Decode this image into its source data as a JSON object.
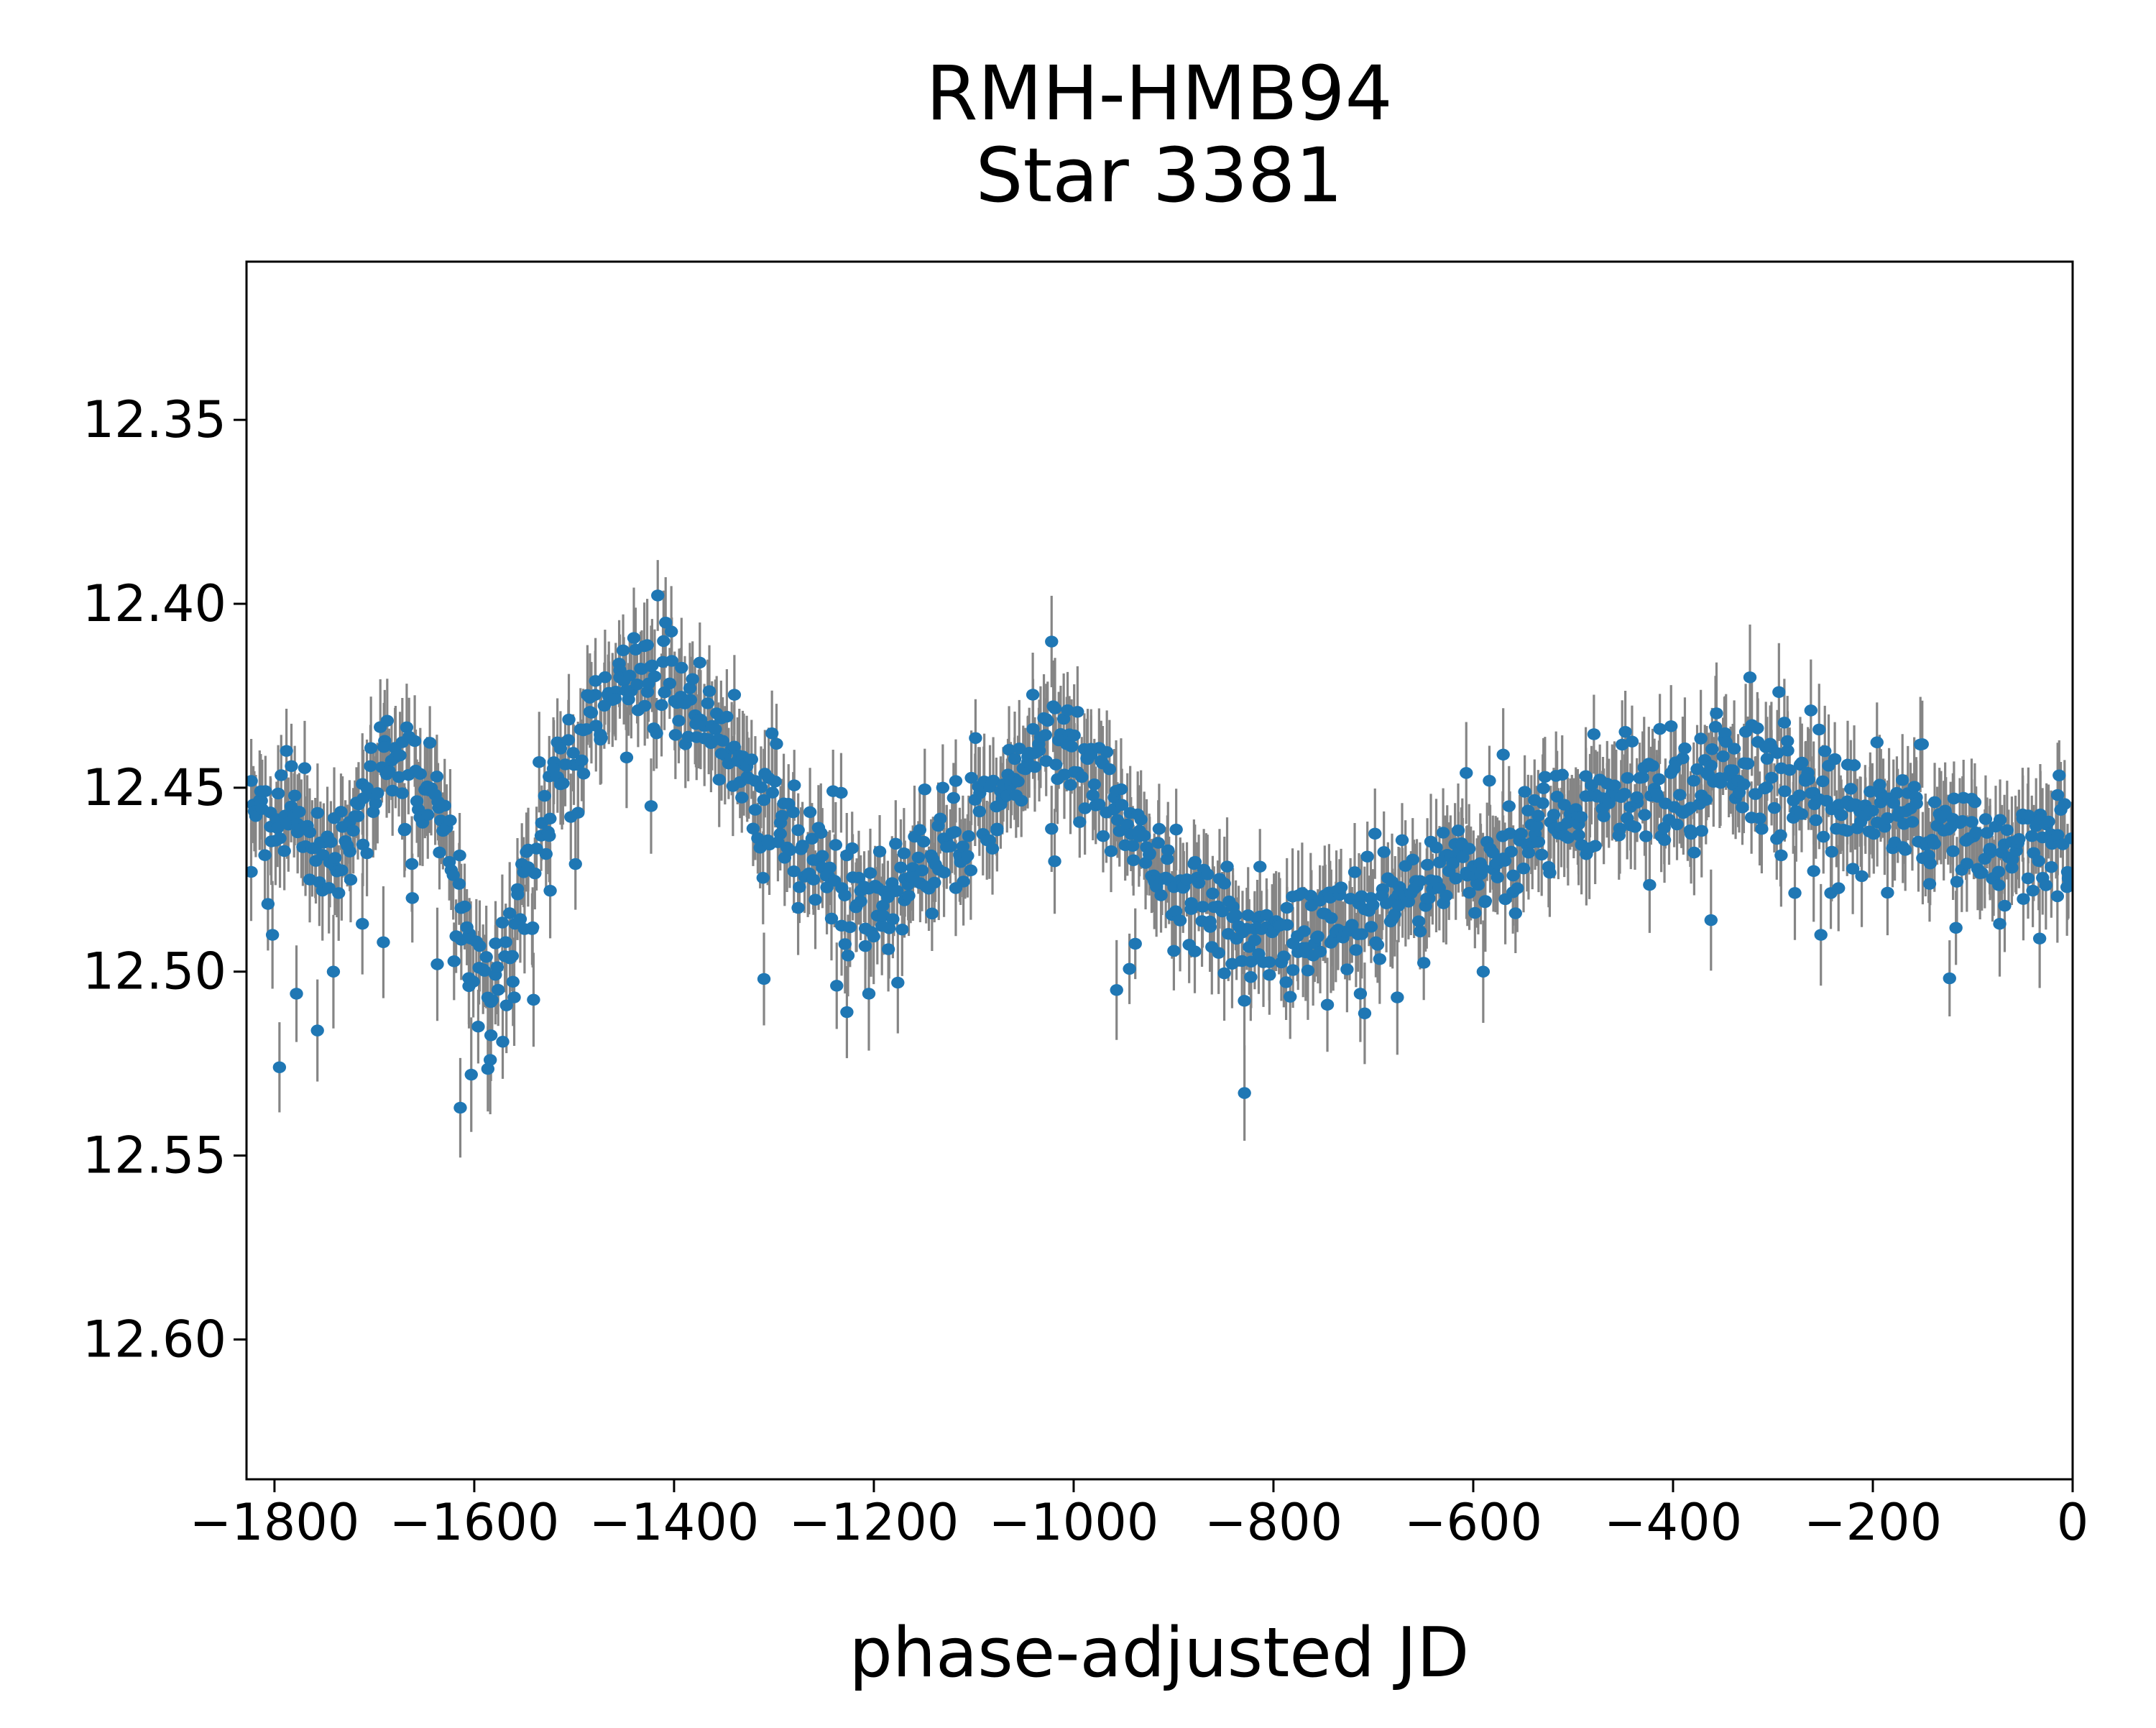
{
  "title": {
    "line1": "RMH-HMB94",
    "line2": "Star 3381"
  },
  "axes": {
    "xlabel": "phase-adjusted JD",
    "x_ticks": [
      {
        "value": -1800,
        "label": "−1800"
      },
      {
        "value": -1600,
        "label": "−1600"
      },
      {
        "value": -1400,
        "label": "−1400"
      },
      {
        "value": -1200,
        "label": "−1200"
      },
      {
        "value": -1000,
        "label": "−1000"
      },
      {
        "value": -800,
        "label": "−800"
      },
      {
        "value": -600,
        "label": "−600"
      },
      {
        "value": -400,
        "label": "−400"
      },
      {
        "value": -200,
        "label": "−200"
      },
      {
        "value": 0,
        "label": "0"
      }
    ],
    "y_ticks": [
      {
        "value": 12.35,
        "label": "12.35"
      },
      {
        "value": 12.4,
        "label": "12.40"
      },
      {
        "value": 12.45,
        "label": "12.45"
      },
      {
        "value": 12.5,
        "label": "12.50"
      },
      {
        "value": 12.55,
        "label": "12.55"
      },
      {
        "value": 12.6,
        "label": "12.60"
      }
    ]
  },
  "style": {
    "marker_color": "#1f77b4",
    "errorbar_color": "#858585",
    "spine_color": "#000000",
    "background_color": "#ffffff"
  },
  "chart_data": {
    "type": "scatter",
    "title": "RMH-HMB94\nStar 3381",
    "xlabel": "phase-adjusted JD",
    "ylabel": "",
    "grid": false,
    "legend": null,
    "y_axis_inverted": true,
    "xlim": [
      -1828,
      0
    ],
    "ylim": [
      12.638,
      12.307
    ],
    "x_data_range": [
      -1824,
      -2
    ],
    "n_points": 1150,
    "seed": 20,
    "scatter_sigma_mag": 0.008,
    "error_bar_mag_min": 0.0095,
    "error_bar_mag_spread": 0.0045,
    "extra_faint_outlier_prob_left": 0.035,
    "extra_faint_outlier_prob_right": 0.012,
    "left_region_boundary": -1540,
    "mean_curve": [
      [
        -1828,
        12.463
      ],
      [
        -1812,
        12.458
      ],
      [
        -1796,
        12.456
      ],
      [
        -1780,
        12.459
      ],
      [
        -1764,
        12.464
      ],
      [
        -1748,
        12.468
      ],
      [
        -1734,
        12.464
      ],
      [
        -1720,
        12.457
      ],
      [
        -1706,
        12.45
      ],
      [
        -1692,
        12.445
      ],
      [
        -1678,
        12.442
      ],
      [
        -1664,
        12.442
      ],
      [
        -1650,
        12.447
      ],
      [
        -1636,
        12.456
      ],
      [
        -1622,
        12.47
      ],
      [
        -1610,
        12.486
      ],
      [
        -1600,
        12.498
      ],
      [
        -1590,
        12.505
      ],
      [
        -1580,
        12.503
      ],
      [
        -1568,
        12.494
      ],
      [
        -1556,
        12.483
      ],
      [
        -1544,
        12.472
      ],
      [
        -1532,
        12.461
      ],
      [
        -1520,
        12.452
      ],
      [
        -1508,
        12.446
      ],
      [
        -1496,
        12.44
      ],
      [
        -1484,
        12.435
      ],
      [
        -1472,
        12.43
      ],
      [
        -1460,
        12.427
      ],
      [
        -1448,
        12.424
      ],
      [
        -1436,
        12.421
      ],
      [
        -1424,
        12.42
      ],
      [
        -1412,
        12.421
      ],
      [
        -1400,
        12.423
      ],
      [
        -1388,
        12.427
      ],
      [
        -1376,
        12.431
      ],
      [
        -1364,
        12.436
      ],
      [
        -1352,
        12.441
      ],
      [
        -1340,
        12.445
      ],
      [
        -1328,
        12.449
      ],
      [
        -1316,
        12.453
      ],
      [
        -1304,
        12.457
      ],
      [
        -1292,
        12.461
      ],
      [
        -1280,
        12.464
      ],
      [
        -1268,
        12.468
      ],
      [
        -1256,
        12.471
      ],
      [
        -1244,
        12.474
      ],
      [
        -1232,
        12.477
      ],
      [
        -1220,
        12.479
      ],
      [
        -1208,
        12.48
      ],
      [
        -1196,
        12.48
      ],
      [
        -1184,
        12.478
      ],
      [
        -1172,
        12.476
      ],
      [
        -1160,
        12.474
      ],
      [
        -1148,
        12.472
      ],
      [
        -1136,
        12.47
      ],
      [
        -1124,
        12.467
      ],
      [
        -1112,
        12.464
      ],
      [
        -1100,
        12.46
      ],
      [
        -1088,
        12.456
      ],
      [
        -1076,
        12.452
      ],
      [
        -1064,
        12.448
      ],
      [
        -1052,
        12.444
      ],
      [
        -1040,
        12.44
      ],
      [
        -1028,
        12.437
      ],
      [
        -1016,
        12.435
      ],
      [
        -1004,
        12.438
      ],
      [
        -992,
        12.443
      ],
      [
        -980,
        12.448
      ],
      [
        -968,
        12.453
      ],
      [
        -956,
        12.459
      ],
      [
        -944,
        12.464
      ],
      [
        -932,
        12.468
      ],
      [
        -920,
        12.471
      ],
      [
        -908,
        12.474
      ],
      [
        -896,
        12.477
      ],
      [
        -884,
        12.479
      ],
      [
        -872,
        12.481
      ],
      [
        -860,
        12.483
      ],
      [
        -848,
        12.484
      ],
      [
        -836,
        12.486
      ],
      [
        -824,
        12.487
      ],
      [
        -812,
        12.487
      ],
      [
        -800,
        12.488
      ],
      [
        -788,
        12.489
      ],
      [
        -776,
        12.49
      ],
      [
        -764,
        12.49
      ],
      [
        -752,
        12.489
      ],
      [
        -740,
        12.488
      ],
      [
        -728,
        12.487
      ],
      [
        -716,
        12.486
      ],
      [
        -704,
        12.485
      ],
      [
        -692,
        12.483
      ],
      [
        -680,
        12.482
      ],
      [
        -668,
        12.48
      ],
      [
        -656,
        12.478
      ],
      [
        -644,
        12.476
      ],
      [
        -632,
        12.474
      ],
      [
        -620,
        12.472
      ],
      [
        -608,
        12.471
      ],
      [
        -596,
        12.469
      ],
      [
        -584,
        12.467
      ],
      [
        -572,
        12.466
      ],
      [
        -560,
        12.464
      ],
      [
        -548,
        12.463
      ],
      [
        -536,
        12.461
      ],
      [
        -524,
        12.46
      ],
      [
        -512,
        12.459
      ],
      [
        -500,
        12.458
      ],
      [
        -488,
        12.456
      ],
      [
        -476,
        12.455
      ],
      [
        -464,
        12.454
      ],
      [
        -452,
        12.453
      ],
      [
        -440,
        12.453
      ],
      [
        -428,
        12.452
      ],
      [
        -416,
        12.451
      ],
      [
        -404,
        12.45
      ],
      [
        -392,
        12.449
      ],
      [
        -380,
        12.449
      ],
      [
        -364,
        12.448
      ],
      [
        -348,
        12.447
      ],
      [
        -332,
        12.446
      ],
      [
        -316,
        12.446
      ],
      [
        -300,
        12.447
      ],
      [
        -284,
        12.449
      ],
      [
        -268,
        12.451
      ],
      [
        -252,
        12.453
      ],
      [
        -236,
        12.455
      ],
      [
        -220,
        12.456
      ],
      [
        -204,
        12.457
      ],
      [
        -188,
        12.458
      ],
      [
        -172,
        12.459
      ],
      [
        -156,
        12.46
      ],
      [
        -140,
        12.461
      ],
      [
        -124,
        12.462
      ],
      [
        -108,
        12.463
      ],
      [
        -92,
        12.464
      ],
      [
        -76,
        12.465
      ],
      [
        -60,
        12.465
      ],
      [
        -44,
        12.466
      ],
      [
        -28,
        12.467
      ],
      [
        -12,
        12.468
      ],
      [
        0,
        12.468
      ]
    ],
    "faint_outliers": [
      [
        -1802,
        12.49
      ],
      [
        -1795,
        12.526
      ],
      [
        -1778,
        12.506
      ],
      [
        -1757,
        12.516
      ],
      [
        -1741,
        12.5
      ],
      [
        -1712,
        12.487
      ],
      [
        -1691,
        12.492
      ],
      [
        -1662,
        12.48
      ],
      [
        -1637,
        12.498
      ],
      [
        -1614,
        12.537
      ],
      [
        -1603,
        12.528
      ],
      [
        -1584,
        12.524
      ],
      [
        -1560,
        12.507
      ],
      [
        -1524,
        12.478
      ],
      [
        -1423,
        12.455
      ],
      [
        -1310,
        12.502
      ],
      [
        -1227,
        12.511
      ],
      [
        -1205,
        12.506
      ],
      [
        -1176,
        12.503
      ],
      [
        -1019,
        12.47
      ],
      [
        -957,
        12.505
      ],
      [
        -829,
        12.533
      ],
      [
        -746,
        12.509
      ],
      [
        -713,
        12.506
      ],
      [
        -676,
        12.507
      ],
      [
        -590,
        12.5
      ],
      [
        -362,
        12.486
      ],
      [
        -252,
        12.49
      ],
      [
        -73,
        12.487
      ],
      [
        -33,
        12.491
      ]
    ],
    "bright_outliers": [
      [
        -1788,
        12.44
      ],
      [
        -1131,
        12.45
      ],
      [
        -607,
        12.446
      ],
      [
        -570,
        12.441
      ],
      [
        -323,
        12.42
      ],
      [
        -294,
        12.424
      ],
      [
        -262,
        12.429
      ],
      [
        -15,
        12.452
      ]
    ]
  }
}
